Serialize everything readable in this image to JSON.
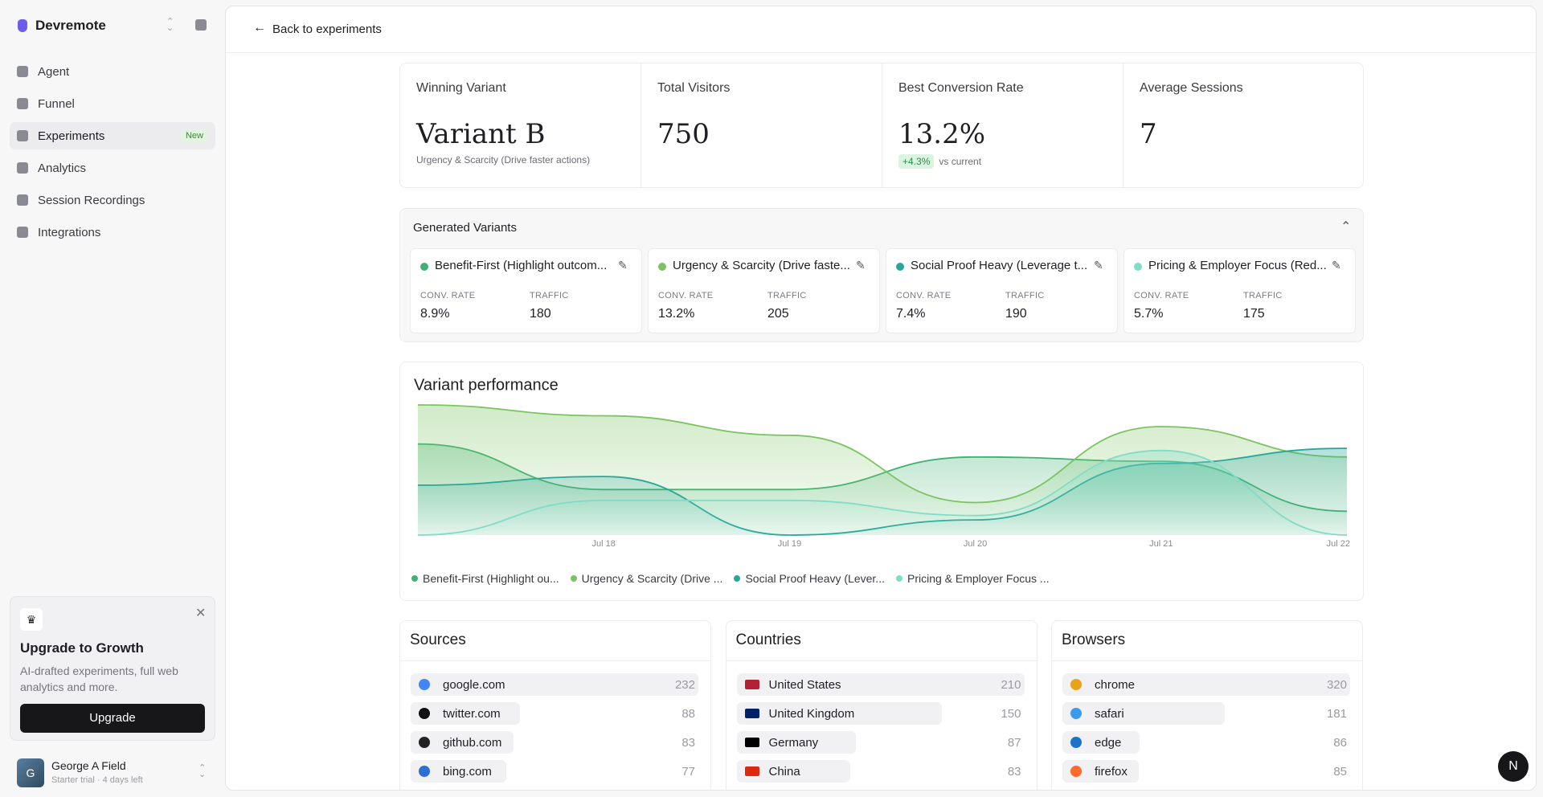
{
  "sidebar": {
    "brand": "Devremote",
    "nav": [
      "Agent",
      "Funnel",
      "Experiments",
      "Analytics",
      "Session Recordings",
      "Integrations"
    ],
    "badge": "New",
    "upgrade": {
      "title": "Upgrade to Growth",
      "text": "AI-drafted experiments, full web analytics and more.",
      "button": "Upgrade"
    },
    "user": {
      "initial": "G",
      "name": "George A Field",
      "plan": "Starter trial · 4 days left"
    }
  },
  "header": {
    "back": "Back to experiments"
  },
  "stats": [
    {
      "label": "Winning Variant",
      "value": "Variant B",
      "note": "Urgency & Scarcity (Drive faster actions)"
    },
    {
      "label": "Total Visitors",
      "value": 750
    },
    {
      "label": "Best Conversion Rate",
      "value": "13.2%",
      "delta": "+4.3%",
      "note": "vs current"
    },
    {
      "label": "Average Sessions",
      "value": 7
    }
  ],
  "variants": {
    "title": "Generated Variants",
    "items": [
      {
        "name": "Benefit-First (Highlight outcom...",
        "color": "#3fb173",
        "conv_label": "CONV. RATE",
        "conv": "8.9%",
        "traffic_label": "TRAFFIC",
        "traffic": 180
      },
      {
        "name": "Urgency & Scarcity (Drive faste...",
        "color": "#7cc462",
        "conv_label": "CONV. RATE",
        "conv": "13.2%",
        "traffic_label": "TRAFFIC",
        "traffic": 205
      },
      {
        "name": "Social Proof Heavy (Leverage t...",
        "color": "#2aa79b",
        "conv_label": "CONV. RATE",
        "conv": "7.4%",
        "traffic_label": "TRAFFIC",
        "traffic": 190
      },
      {
        "name": "Pricing & Employer Focus (Red...",
        "color": "#80dcc6",
        "conv_label": "CONV. RATE",
        "conv": "5.7%",
        "traffic_label": "TRAFFIC",
        "traffic": 175
      }
    ]
  },
  "chart_data": {
    "type": "area",
    "title": "Variant performance",
    "categories": [
      null,
      "Jul 18",
      "Jul 19",
      "Jul 20",
      "Jul 21",
      "Jul 22"
    ],
    "series": [
      {
        "name": "Benefit-First (Highlight ou...",
        "color": "#3fb173",
        "values": [
          42,
          21,
          21,
          36,
          34,
          11
        ]
      },
      {
        "name": "Urgency & Scarcity (Drive ...",
        "color": "#7cc462",
        "values": [
          60,
          55,
          46,
          15,
          50,
          36
        ]
      },
      {
        "name": "Social Proof Heavy (Lever...",
        "color": "#2aa79b",
        "values": [
          23,
          27,
          0,
          7,
          33,
          40
        ]
      },
      {
        "name": "Pricing & Employer Focus ...",
        "color": "#80dcc6",
        "values": [
          0,
          16,
          16,
          9,
          39,
          0
        ]
      }
    ]
  },
  "breakdowns": [
    {
      "title": "Sources",
      "rows": [
        {
          "label": "google.com",
          "value": 232
        },
        {
          "label": "twitter.com",
          "value": 88
        },
        {
          "label": "github.com",
          "value": 83
        },
        {
          "label": "bing.com",
          "value": 77
        }
      ]
    },
    {
      "title": "Countries",
      "rows": [
        {
          "label": "United States",
          "value": 210
        },
        {
          "label": "United Kingdom",
          "value": 150
        },
        {
          "label": "Germany",
          "value": 87
        },
        {
          "label": "China",
          "value": 83
        }
      ]
    },
    {
      "title": "Browsers",
      "rows": [
        {
          "label": "chrome",
          "value": 320
        },
        {
          "label": "safari",
          "value": 181
        },
        {
          "label": "edge",
          "value": 86
        },
        {
          "label": "firefox",
          "value": 85
        }
      ]
    }
  ],
  "fab": "N"
}
